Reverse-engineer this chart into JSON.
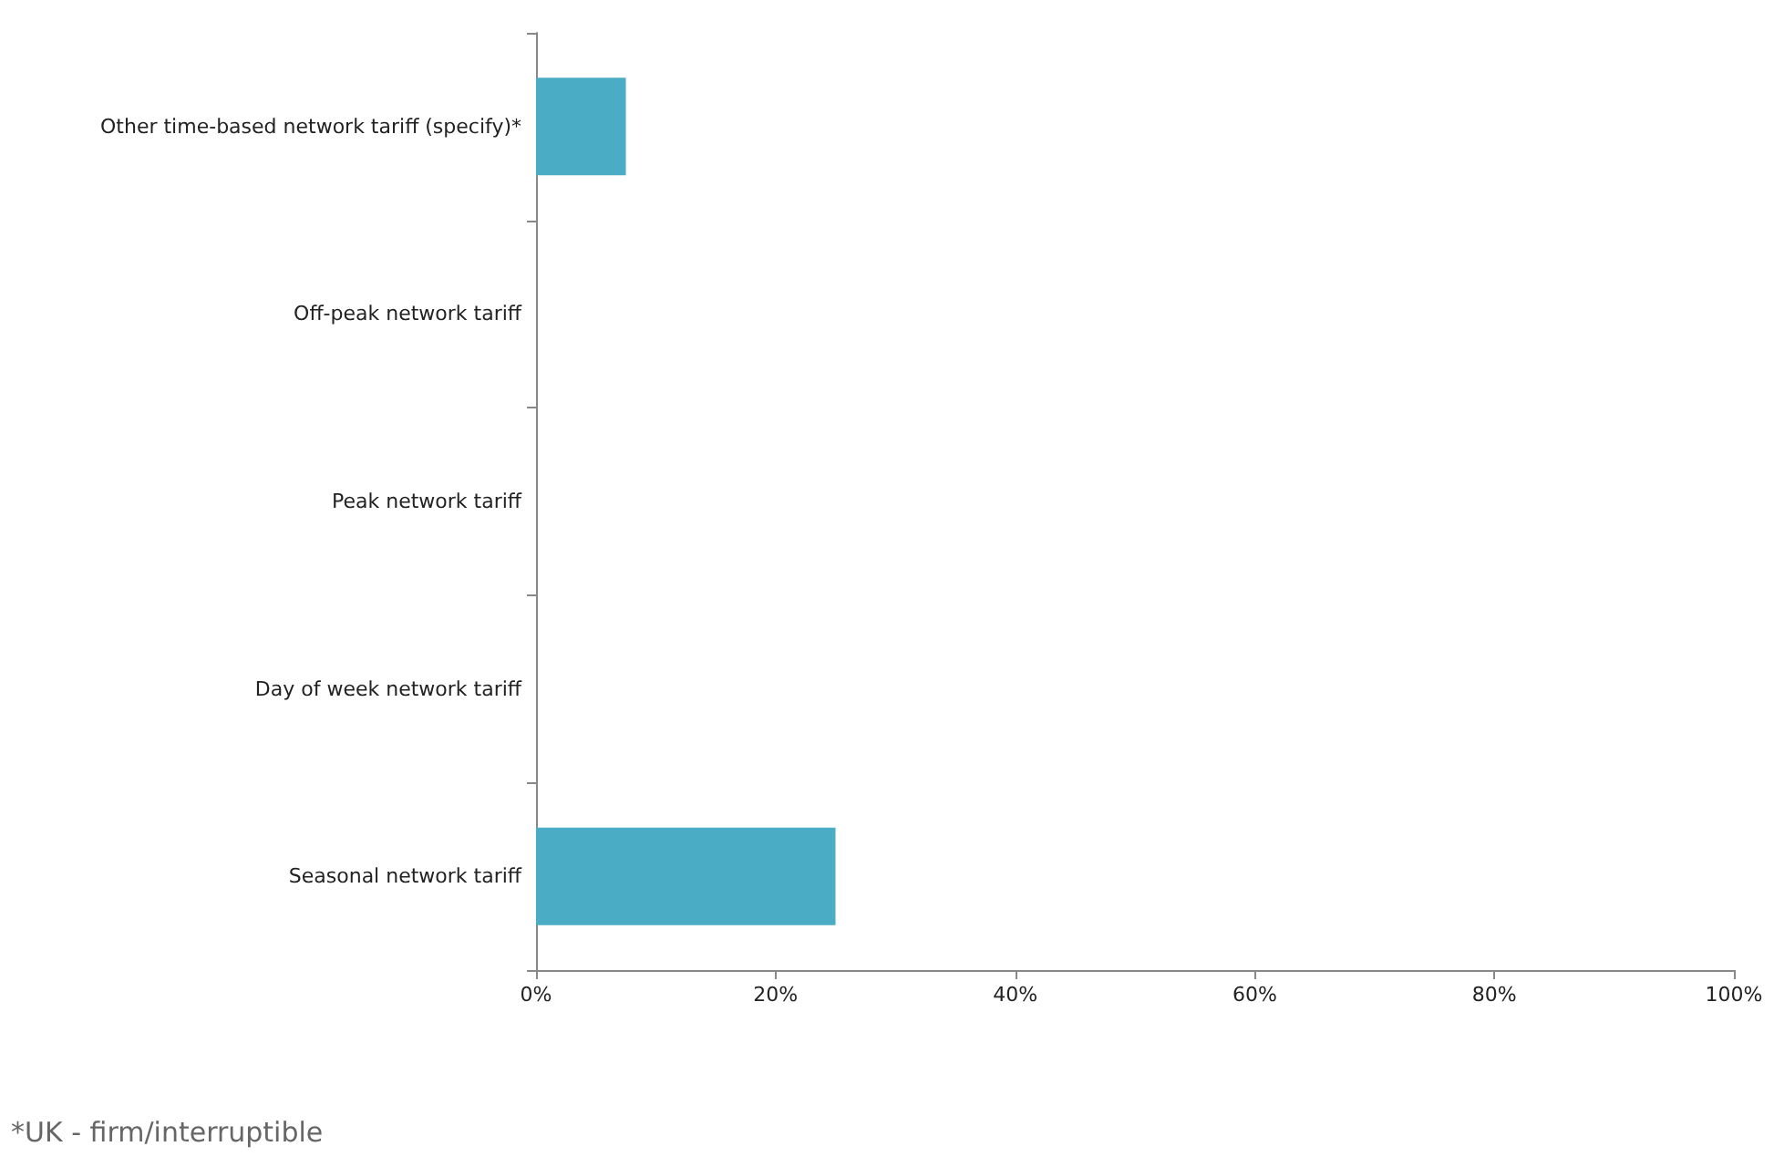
{
  "chart_data": {
    "type": "bar",
    "orientation": "horizontal",
    "categories": [
      "Other time-based network tariff (specify)*",
      "Off-peak network tariff",
      "Peak network tariff",
      "Day of week network tariff",
      "Seasonal network tariff"
    ],
    "values": [
      7.5,
      0,
      0,
      0,
      25
    ],
    "color": "#4bacc6",
    "xlim": [
      0,
      100
    ],
    "xticks": [
      {
        "value": 0,
        "label": "0%"
      },
      {
        "value": 20,
        "label": "20%"
      },
      {
        "value": 40,
        "label": "40%"
      },
      {
        "value": 60,
        "label": "60%"
      },
      {
        "value": 80,
        "label": "80%"
      },
      {
        "value": 100,
        "label": "100%"
      }
    ],
    "annotations": [
      "*UK - firm/interruptible"
    ]
  }
}
